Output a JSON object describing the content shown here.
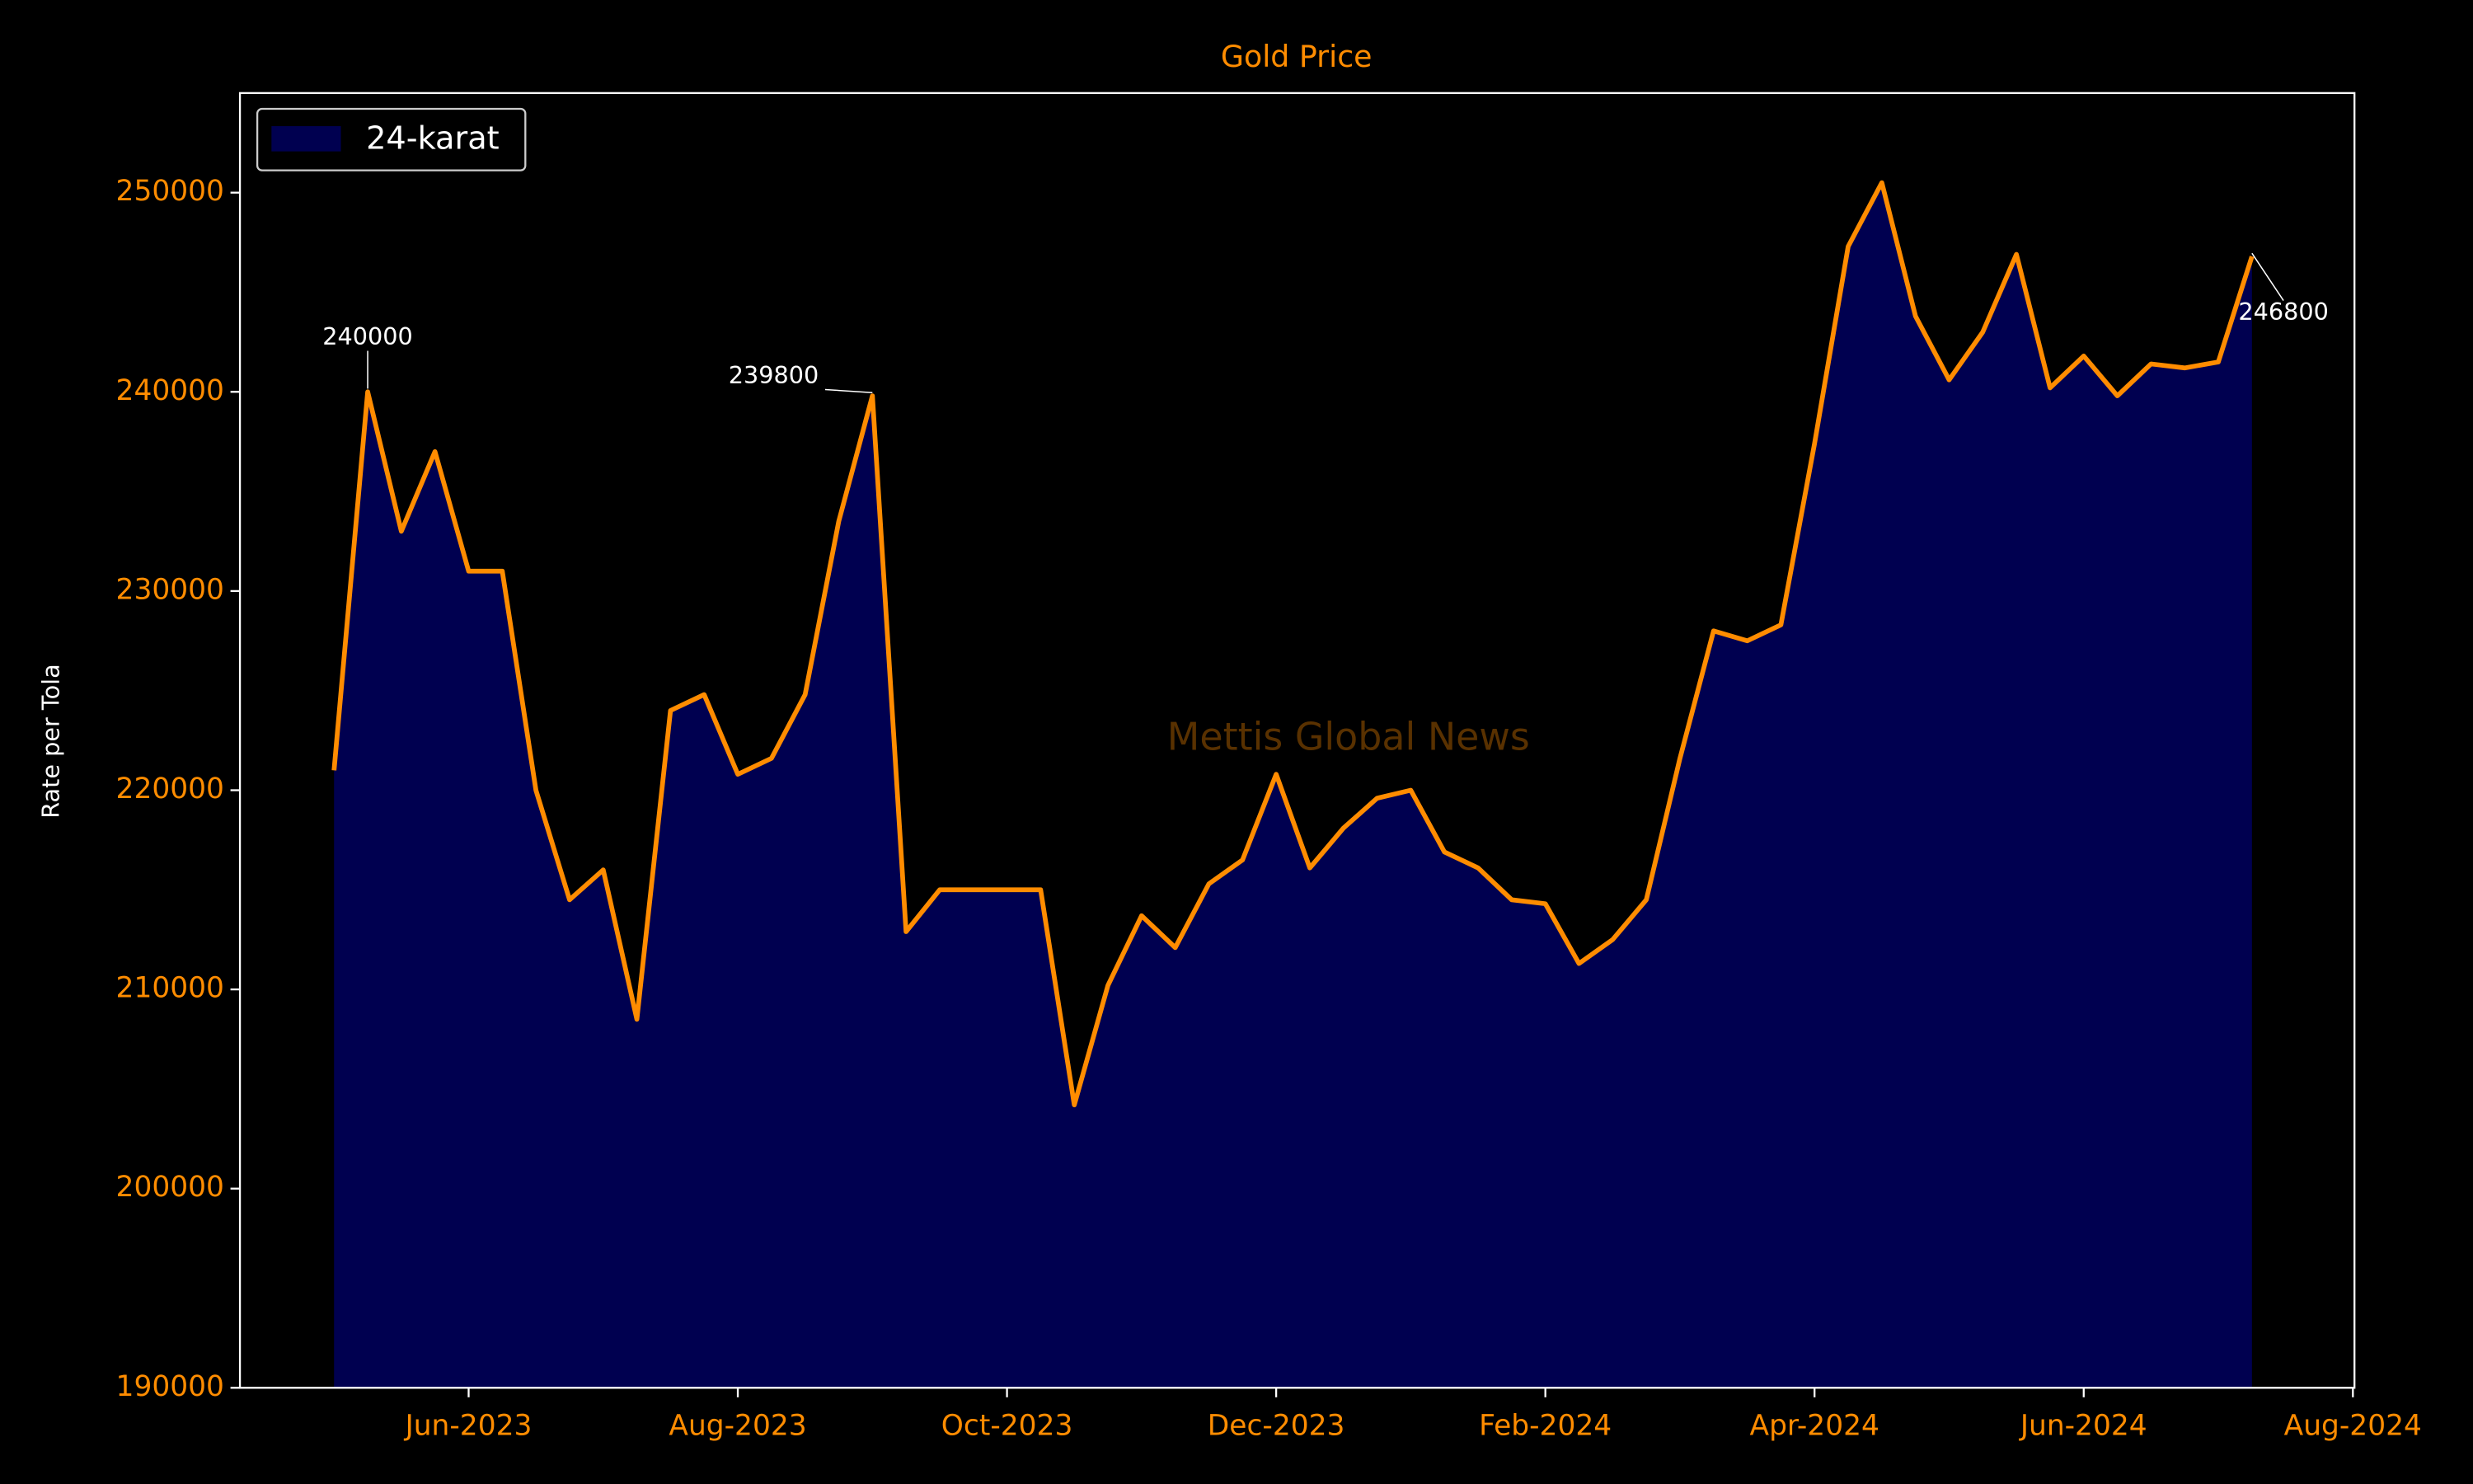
{
  "chart_data": {
    "type": "line",
    "title": "Gold Price",
    "ylabel": "Rate per Tola",
    "watermark": "Mettis Global News",
    "categories": [
      null,
      null,
      null,
      null,
      null,
      null,
      "Jun-2023",
      null,
      null,
      null,
      null,
      null,
      null,
      null,
      "Aug-2023",
      null,
      null,
      null,
      null,
      null,
      null,
      null,
      "Oct-2023",
      null,
      null,
      null,
      null,
      null,
      null,
      null,
      "Dec-2023",
      null,
      null,
      null,
      null,
      null,
      null,
      null,
      "Feb-2024",
      null,
      null,
      null,
      null,
      null,
      null,
      null,
      "Apr-2024",
      null,
      null,
      null,
      null,
      null,
      null,
      null,
      "Jun-2024",
      null,
      null,
      null,
      null,
      null,
      null,
      null,
      "Aug-2024"
    ],
    "series": [
      {
        "name": "24-karat",
        "color": "#ff8c00",
        "fill": "#000050",
        "values": [
          null,
          null,
          221000,
          240000,
          233000,
          237000,
          231000,
          231000,
          220000,
          214500,
          216000,
          208500,
          224000,
          224800,
          220800,
          221600,
          224800,
          233500,
          239800,
          212900,
          215000,
          215000,
          215000,
          215000,
          204200,
          210200,
          213700,
          212100,
          215300,
          216500,
          220800,
          216100,
          218100,
          219600,
          220000,
          216900,
          216100,
          214500,
          214300,
          211300,
          212500,
          214500,
          221600,
          228000,
          227500,
          228300,
          237400,
          247300,
          250500,
          243800,
          240600,
          243000,
          246900,
          240200,
          241800,
          239800,
          241400,
          241200,
          241500,
          246800,
          null,
          null,
          null
        ],
        "value_labels": [
          null,
          null,
          null,
          "240000",
          null,
          null,
          null,
          null,
          null,
          null,
          null,
          null,
          null,
          null,
          null,
          null,
          null,
          null,
          "239800",
          null,
          null,
          null,
          null,
          null,
          null,
          null,
          null,
          null,
          null,
          null,
          null,
          null,
          null,
          null,
          null,
          null,
          null,
          null,
          null,
          null,
          null,
          null,
          null,
          null,
          null,
          null,
          null,
          null,
          null,
          null,
          null,
          null,
          null,
          null,
          null,
          null,
          null,
          null,
          null,
          "246800",
          null,
          null,
          null
        ]
      }
    ],
    "ylim": [
      190000,
      255000
    ],
    "yticks": [
      190000,
      200000,
      210000,
      220000,
      230000,
      240000,
      250000
    ],
    "legend": "upper left",
    "axis_color": "#ff8c00"
  }
}
